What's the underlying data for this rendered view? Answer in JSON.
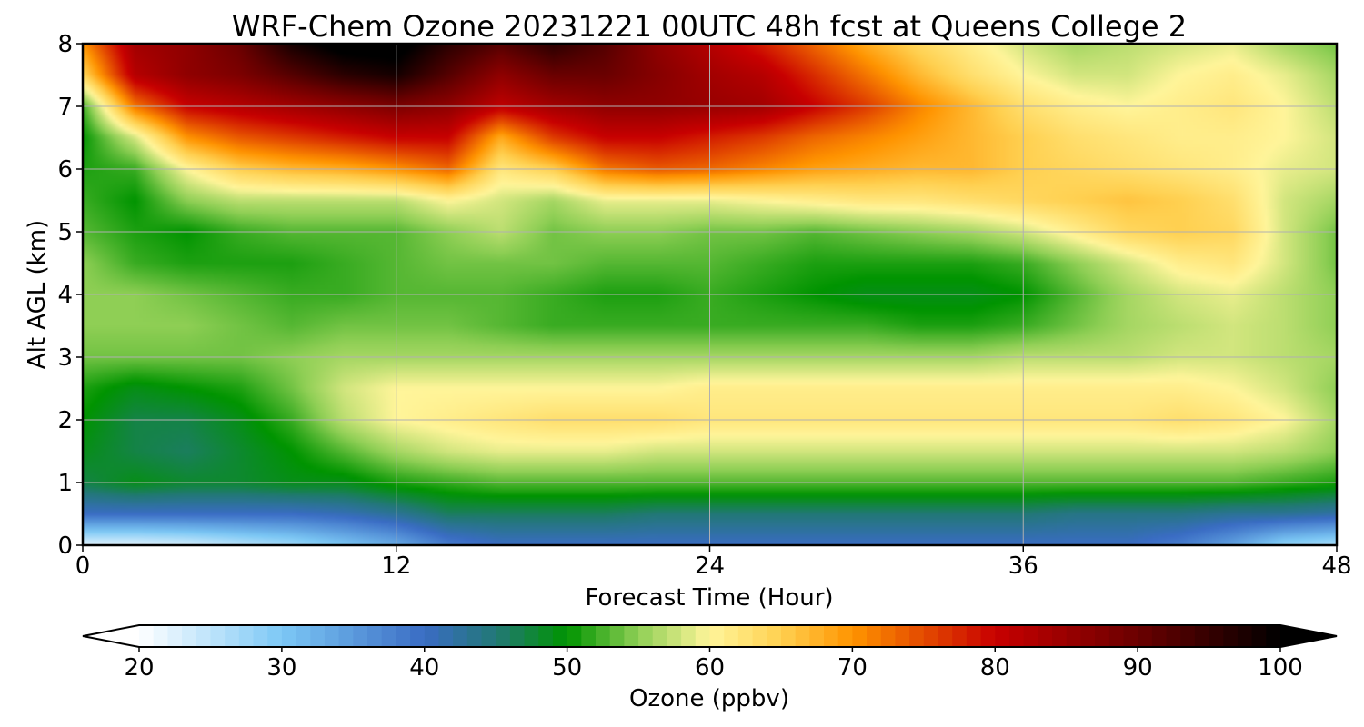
{
  "chart_data": {
    "type": "heatmap",
    "title": "WRF-Chem Ozone  20231221 00UTC 48h fcst at Queens College 2",
    "xlabel": "Forecast Time (Hour)",
    "ylabel": "Alt AGL (km)",
    "xlim": [
      0,
      48
    ],
    "ylim": [
      0,
      8
    ],
    "x_ticks": [
      0,
      12,
      24,
      36,
      48
    ],
    "x_tick_labels": [
      "0",
      "12",
      "24",
      "36",
      "48"
    ],
    "y_ticks": [
      0,
      1,
      2,
      3,
      4,
      5,
      6,
      7,
      8
    ],
    "y_tick_labels": [
      "0",
      "1",
      "2",
      "3",
      "4",
      "5",
      "6",
      "7",
      "8"
    ],
    "grid": true,
    "colorbar": {
      "label": "Ozone  (ppbv)",
      "min": 20,
      "max": 100,
      "ticks": [
        20,
        30,
        40,
        50,
        60,
        70,
        80,
        90,
        100
      ],
      "tick_labels": [
        "20",
        "30",
        "40",
        "50",
        "60",
        "70",
        "80",
        "90",
        "100"
      ],
      "extend": "both",
      "color_stops": [
        {
          "value": 20,
          "color": "#ffffff"
        },
        {
          "value": 30,
          "color": "#7cc8f5"
        },
        {
          "value": 40,
          "color": "#3a6cc4"
        },
        {
          "value": 45,
          "color": "#227876"
        },
        {
          "value": 50,
          "color": "#009400"
        },
        {
          "value": 55,
          "color": "#8fcf55"
        },
        {
          "value": 60,
          "color": "#fff59a"
        },
        {
          "value": 65,
          "color": "#ffd050"
        },
        {
          "value": 70,
          "color": "#ff9400"
        },
        {
          "value": 80,
          "color": "#c80000"
        },
        {
          "value": 90,
          "color": "#6a0000"
        },
        {
          "value": 100,
          "color": "#000000"
        }
      ]
    },
    "x": [
      0,
      2,
      4,
      6,
      8,
      10,
      12,
      14,
      16,
      18,
      20,
      22,
      24,
      26,
      28,
      30,
      32,
      34,
      36,
      38,
      40,
      42,
      44,
      46,
      48
    ],
    "y": [
      0,
      0.5,
      1,
      1.5,
      2,
      2.5,
      3,
      3.5,
      4,
      4.5,
      5,
      5.5,
      6,
      6.5,
      7,
      7.5,
      8
    ],
    "z": [
      [
        22,
        22,
        23,
        25,
        27,
        30,
        33,
        38,
        40,
        40,
        40,
        40,
        40,
        40,
        40,
        40,
        40,
        40,
        40,
        40,
        40,
        38,
        34,
        28,
        26
      ],
      [
        40,
        40,
        40,
        40,
        40,
        41,
        43,
        46,
        46,
        46,
        46,
        45,
        45,
        45,
        45,
        45,
        45,
        45,
        45,
        44,
        44,
        44,
        43,
        43,
        42
      ],
      [
        47,
        49,
        48,
        48,
        49,
        49,
        51,
        52,
        53,
        53,
        53,
        53,
        53,
        53,
        53,
        53,
        53,
        53,
        53,
        53,
        53,
        53,
        53,
        52,
        51
      ],
      [
        49,
        47,
        46,
        48,
        50,
        53,
        56,
        58,
        59,
        59,
        59,
        58,
        58,
        58,
        58,
        58,
        58,
        58,
        58,
        58,
        58,
        58,
        58,
        57,
        55
      ],
      [
        50,
        47,
        47,
        49,
        52,
        57,
        60,
        61,
        62,
        63,
        63,
        63,
        62,
        62,
        62,
        62,
        62,
        62,
        62,
        62,
        62,
        63,
        62,
        60,
        56
      ],
      [
        51,
        49,
        50,
        51,
        54,
        58,
        60,
        60,
        60,
        60,
        60,
        60,
        61,
        61,
        61,
        61,
        61,
        61,
        61,
        61,
        61,
        61,
        60,
        58,
        55
      ],
      [
        54,
        54,
        54,
        54,
        55,
        56,
        56,
        56,
        56,
        56,
        56,
        56,
        56,
        56,
        56,
        56,
        56,
        56,
        57,
        57,
        57,
        58,
        58,
        57,
        56
      ],
      [
        55,
        55,
        55,
        54,
        53,
        54,
        54,
        54,
        53,
        52,
        52,
        52,
        52,
        52,
        52,
        52,
        51,
        51,
        52,
        54,
        56,
        57,
        58,
        57,
        55
      ],
      [
        55,
        55,
        54,
        53,
        52,
        52,
        53,
        53,
        53,
        52,
        51,
        51,
        52,
        51,
        50,
        49,
        49,
        49,
        50,
        53,
        56,
        58,
        59,
        57,
        55
      ],
      [
        55,
        52,
        51,
        51,
        51,
        52,
        53,
        54,
        54,
        54,
        53,
        53,
        53,
        52,
        51,
        51,
        51,
        51,
        52,
        55,
        58,
        61,
        62,
        58,
        54
      ],
      [
        53,
        51,
        50,
        52,
        53,
        53,
        53,
        55,
        57,
        54,
        55,
        55,
        54,
        54,
        53,
        54,
        55,
        56,
        58,
        61,
        64,
        65,
        64,
        58,
        54
      ],
      [
        52,
        50,
        55,
        57,
        57,
        57,
        57,
        60,
        58,
        56,
        59,
        59,
        59,
        60,
        61,
        62,
        62,
        63,
        64,
        65,
        66,
        65,
        63,
        58,
        56
      ],
      [
        51,
        52,
        60,
        65,
        67,
        68,
        70,
        73,
        62,
        65,
        72,
        74,
        73,
        71,
        69,
        68,
        67,
        67,
        65,
        64,
        63,
        62,
        61,
        59,
        58
      ],
      [
        50,
        58,
        70,
        74,
        76,
        78,
        80,
        80,
        68,
        76,
        80,
        80,
        78,
        76,
        73,
        71,
        69,
        67,
        65,
        63,
        62,
        61,
        61,
        60,
        58
      ],
      [
        52,
        72,
        80,
        82,
        84,
        86,
        88,
        86,
        81,
        84,
        86,
        86,
        85,
        84,
        80,
        76,
        71,
        67,
        63,
        61,
        60,
        61,
        62,
        60,
        57
      ],
      [
        64,
        82,
        86,
        88,
        92,
        96,
        98,
        92,
        86,
        90,
        90,
        87,
        84,
        82,
        77,
        72,
        67,
        63,
        60,
        58,
        58,
        60,
        61,
        59,
        56
      ],
      [
        70,
        84,
        86,
        90,
        98,
        102,
        102,
        96,
        92,
        96,
        92,
        86,
        82,
        78,
        73,
        68,
        64,
        61,
        58,
        56,
        57,
        58,
        59,
        56,
        54
      ]
    ]
  }
}
